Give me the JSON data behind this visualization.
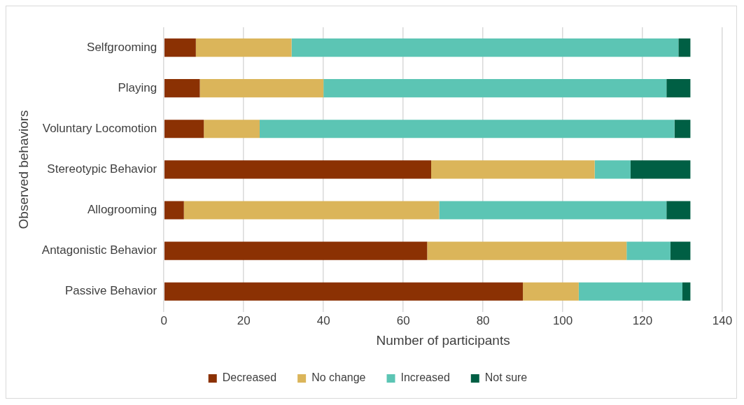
{
  "chart_data": {
    "type": "bar",
    "orientation": "horizontal",
    "stacked": true,
    "xlabel": "Number of participants",
    "ylabel": "Observed behaviors",
    "categories": [
      "Selfgrooming",
      "Playing",
      "Voluntary Locomotion",
      "Stereotypic Behavior",
      "Allogrooming",
      "Antagonistic Behavior",
      "Passive Behavior"
    ],
    "series": [
      {
        "name": "Decreased",
        "color": "#8b3103",
        "values": [
          8,
          9,
          10,
          67,
          5,
          66,
          90
        ]
      },
      {
        "name": "No change",
        "color": "#dbb55a",
        "values": [
          24,
          31,
          14,
          41,
          64,
          50,
          14
        ]
      },
      {
        "name": "Increased",
        "color": "#5cc5b4",
        "values": [
          97,
          86,
          104,
          9,
          57,
          11,
          26
        ]
      },
      {
        "name": "Not sure",
        "color": "#005f44",
        "values": [
          3,
          6,
          4,
          15,
          6,
          5,
          2
        ]
      }
    ],
    "xlim": [
      0,
      140
    ],
    "xticks": [
      0,
      20,
      40,
      60,
      80,
      100,
      120,
      140
    ],
    "grid": "x",
    "legend": "bottom"
  }
}
